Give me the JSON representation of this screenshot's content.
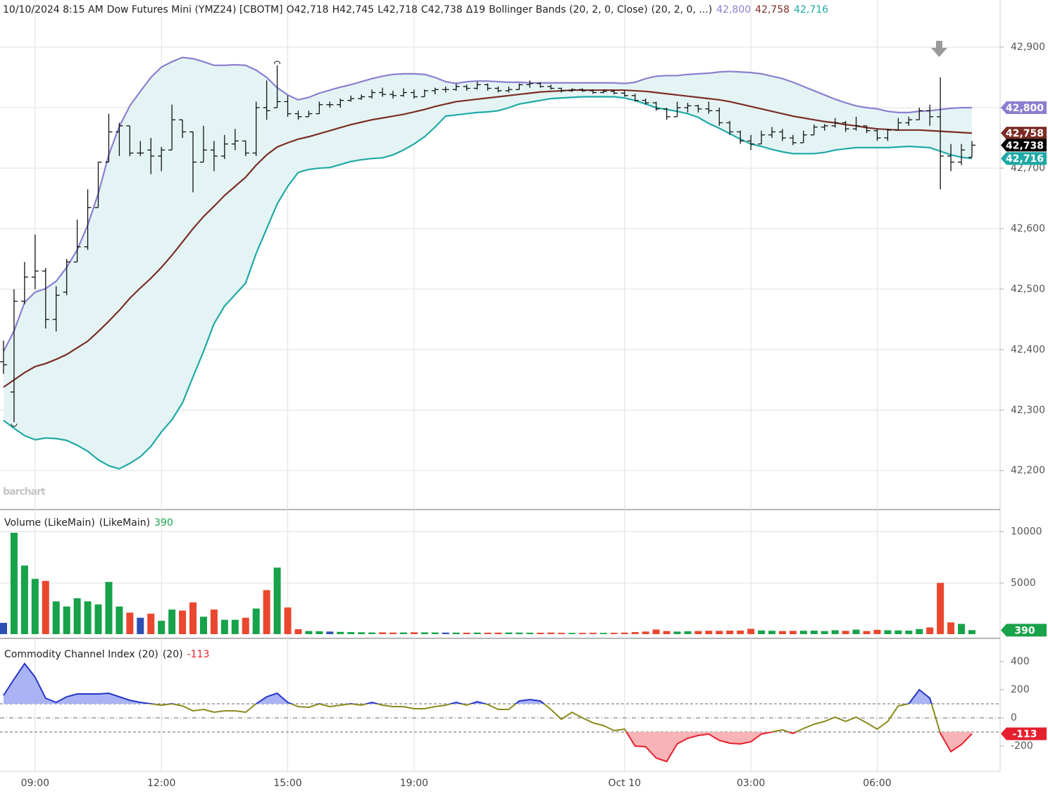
{
  "chart_data": [
    {
      "type": "ohlc",
      "header": [
        "10/10/2024 8:15 AM",
        "Dow Futures Mini (YMZ24) [CBOTM]",
        "O42,718",
        "H42,745",
        "L42,718",
        "C42,738",
        "Δ19",
        "Bollinger Bands (20, 2, 0, Close)",
        "(20, 2, 0, ...)"
      ],
      "watermark": "barchart",
      "color": "#111111",
      "badge": "42,738",
      "band_fill": "#e4f4f4",
      "open": [
        42380,
        42330,
        42480,
        42520,
        42530,
        42450,
        42495,
        42545,
        42570,
        42635,
        42710,
        42760,
        42770,
        42725,
        42730,
        42720,
        42730,
        42780,
        42760,
        42710,
        42730,
        42720,
        42740,
        42745,
        42725,
        42800,
        42800,
        42810,
        42790,
        42785,
        42790,
        42805,
        42805,
        42812,
        42815,
        42818,
        42825,
        42822,
        42820,
        42825,
        42818,
        42828,
        42830,
        42830,
        42835,
        42832,
        42838,
        42832,
        42828,
        42830,
        42838,
        42840,
        42835,
        42832,
        42828,
        42830,
        42828,
        42825,
        42827,
        42824,
        42820,
        42812,
        42808,
        42798,
        42785,
        42800,
        42803,
        42798,
        42795,
        42775,
        42760,
        42745,
        42740,
        42755,
        42760,
        42750,
        42742,
        42755,
        42768,
        42770,
        42775,
        42765,
        42770,
        42762,
        42750,
        42763,
        42775,
        42780,
        42795,
        42785,
        42720,
        42710,
        42718
      ],
      "high": [
        42415,
        42500,
        42545,
        42590,
        42535,
        42505,
        42550,
        42615,
        42665,
        42710,
        42790,
        42775,
        42770,
        42745,
        42750,
        42735,
        42805,
        42780,
        42760,
        42770,
        42745,
        42755,
        42765,
        42745,
        42810,
        42845,
        42870,
        42820,
        42795,
        42795,
        42810,
        42810,
        42815,
        42820,
        42822,
        42830,
        42833,
        42828,
        42832,
        42830,
        42830,
        42833,
        42835,
        42840,
        42838,
        42843,
        42840,
        42835,
        42835,
        42840,
        42845,
        42842,
        42838,
        42833,
        42832,
        42832,
        42830,
        42830,
        42829,
        42828,
        42823,
        42815,
        42810,
        42800,
        42810,
        42808,
        42805,
        42810,
        42800,
        42778,
        42762,
        42755,
        42762,
        42768,
        42765,
        42755,
        42762,
        42772,
        42773,
        42783,
        42778,
        42785,
        42770,
        42765,
        42765,
        42783,
        42785,
        42800,
        42805,
        42850,
        42740,
        42740,
        42745
      ],
      "low": [
        42360,
        42280,
        42475,
        42500,
        42435,
        42430,
        42490,
        42545,
        42565,
        42635,
        42710,
        42720,
        42720,
        42720,
        42690,
        42695,
        42730,
        42750,
        42660,
        42710,
        42695,
        42715,
        42730,
        42720,
        42720,
        42780,
        42800,
        42785,
        42780,
        42785,
        42790,
        42800,
        42800,
        42810,
        42813,
        42815,
        42818,
        42815,
        42818,
        42815,
        42818,
        42822,
        42825,
        42828,
        42828,
        42830,
        42828,
        42825,
        42825,
        42830,
        42833,
        42833,
        42830,
        42825,
        42826,
        42826,
        42823,
        42824,
        42822,
        42818,
        42810,
        42805,
        42795,
        42780,
        42785,
        42792,
        42792,
        42790,
        42770,
        42755,
        42740,
        42730,
        42740,
        42750,
        42745,
        42738,
        42742,
        42755,
        42762,
        42767,
        42760,
        42762,
        42758,
        42745,
        42745,
        42763,
        42770,
        42780,
        42770,
        42665,
        42695,
        42705,
        42718
      ],
      "close": [
        42375,
        42480,
        42520,
        42530,
        42450,
        42490,
        42545,
        42570,
        42635,
        42710,
        42760,
        42770,
        42725,
        42725,
        42720,
        42730,
        42780,
        42760,
        42710,
        42730,
        42720,
        42740,
        42745,
        42725,
        42800,
        42795,
        42810,
        42790,
        42785,
        42790,
        42805,
        42805,
        42812,
        42815,
        42818,
        42825,
        42822,
        42820,
        42825,
        42818,
        42828,
        42830,
        42830,
        42835,
        42832,
        42838,
        42832,
        42828,
        42830,
        42838,
        42840,
        42835,
        42832,
        42828,
        42830,
        42828,
        42825,
        42827,
        42824,
        42820,
        42812,
        42808,
        42798,
        42785,
        42800,
        42803,
        42798,
        42795,
        42775,
        42760,
        42745,
        42740,
        42755,
        42760,
        42750,
        42742,
        42755,
        42768,
        42770,
        42775,
        42765,
        42770,
        42762,
        42750,
        42763,
        42775,
        42780,
        42795,
        42785,
        42720,
        42710,
        42730,
        42738
      ],
      "series": [
        {
          "color": "#8a7fd0",
          "badge": "42,800",
          "values": [
            42397,
            42431,
            42478,
            42495,
            42501,
            42513,
            42536,
            42565,
            42606,
            42658,
            42722,
            42769,
            42803,
            42827,
            42850,
            42867,
            42876,
            42883,
            42881,
            42876,
            42870,
            42870,
            42871,
            42870,
            42862,
            42850,
            42833,
            42821,
            42813,
            42817,
            42824,
            42829,
            42834,
            42838,
            42843,
            42848,
            42852,
            42855,
            42856,
            42856,
            42855,
            42850,
            42843,
            42840,
            42843,
            42844,
            42844,
            42843,
            42842,
            42842,
            42841,
            42841,
            42841,
            42841,
            42841,
            42841,
            42841,
            42841,
            42841,
            42840,
            42842,
            42848,
            42852,
            42853,
            42853,
            42855,
            42856,
            42857,
            42859,
            42860,
            42859,
            42858,
            42856,
            42852,
            42848,
            42842,
            42835,
            42828,
            42821,
            42814,
            42808,
            42803,
            42800,
            42798,
            42794,
            42792,
            42792,
            42794,
            42795,
            42797,
            42799,
            42800,
            42800
          ]
        },
        {
          "color": "#7b2d25",
          "badge": "42,758",
          "values": [
            42338,
            42350,
            42362,
            42372,
            42377,
            42384,
            42392,
            42403,
            42414,
            42430,
            42447,
            42465,
            42485,
            42502,
            42518,
            42536,
            42556,
            42578,
            42600,
            42620,
            42637,
            42655,
            42670,
            42685,
            42705,
            42722,
            42735,
            42742,
            42748,
            42752,
            42757,
            42762,
            42767,
            42772,
            42776,
            42780,
            42783,
            42786,
            42789,
            42793,
            42797,
            42802,
            42806,
            42810,
            42812,
            42814,
            42816,
            42818,
            42820,
            42822,
            42824,
            42826,
            42827,
            42828,
            42829,
            42829,
            42829,
            42829,
            42829,
            42829,
            42828,
            42827,
            42825,
            42823,
            42821,
            42819,
            42817,
            42815,
            42813,
            42810,
            42806,
            42802,
            42798,
            42794,
            42790,
            42786,
            42783,
            42780,
            42777,
            42775,
            42772,
            42770,
            42767,
            42765,
            42764,
            42763,
            42763,
            42763,
            42762,
            42761,
            42760,
            42759,
            42758
          ]
        },
        {
          "color": "#1fa9a6",
          "badge": "42,716",
          "values": [
            42283,
            42270,
            42258,
            42251,
            42254,
            42253,
            42250,
            42242,
            42232,
            42218,
            42208,
            42203,
            42212,
            42223,
            42240,
            42264,
            42284,
            42312,
            42355,
            42397,
            42443,
            42472,
            42491,
            42510,
            42559,
            42600,
            42641,
            42670,
            42693,
            42698,
            42700,
            42701,
            42706,
            42711,
            42714,
            42716,
            42717,
            42722,
            42730,
            42740,
            42752,
            42768,
            42786,
            42788,
            42790,
            42792,
            42793,
            42795,
            42800,
            42806,
            42809,
            42812,
            42815,
            42816,
            42817,
            42818,
            42818,
            42818,
            42818,
            42816,
            42812,
            42806,
            42800,
            42797,
            42794,
            42790,
            42784,
            42774,
            42766,
            42757,
            42748,
            42740,
            42736,
            42731,
            42727,
            42724,
            42724,
            42724,
            42726,
            42730,
            42732,
            42734,
            42734,
            42734,
            42734,
            42735,
            42736,
            42735,
            42734,
            42728,
            42722,
            42718,
            42716
          ]
        }
      ],
      "ylim": [
        42138,
        42978
      ],
      "yticks": [
        {
          "value": 42200,
          "label": "42,200"
        },
        {
          "value": 42300,
          "label": "42,300"
        },
        {
          "value": 42400,
          "label": "42,400"
        },
        {
          "value": 42500,
          "label": "42,500"
        },
        {
          "value": 42600,
          "label": "42,600"
        },
        {
          "value": 42700,
          "label": "42,700"
        },
        {
          "value": 42800,
          "label": "42,800"
        },
        {
          "value": 42900,
          "label": "42,900"
        }
      ],
      "grid": true
    },
    {
      "type": "bar",
      "title": "Volume (LikeMain)",
      "subtitle": "(LikeMain)",
      "badge": "390",
      "colors": {
        "up": "#18a24a",
        "down": "#e9472e",
        "unchanged": "#2c4fb3"
      },
      "values": [
        1100,
        9900,
        6700,
        5400,
        5200,
        3200,
        2700,
        3500,
        3200,
        2900,
        5100,
        2700,
        2100,
        1600,
        2000,
        1300,
        2400,
        2300,
        3100,
        1700,
        2400,
        1400,
        1400,
        1600,
        2500,
        4300,
        6500,
        2600,
        480,
        300,
        280,
        250,
        220,
        200,
        180,
        160,
        170,
        150,
        160,
        180,
        170,
        160,
        150,
        150,
        140,
        150,
        140,
        150,
        160,
        150,
        140,
        140,
        150,
        130,
        120,
        120,
        130,
        120,
        130,
        150,
        200,
        250,
        450,
        300,
        250,
        280,
        300,
        330,
        320,
        340,
        350,
        520,
        360,
        330,
        300,
        320,
        330,
        340,
        300,
        380,
        320,
        440,
        300,
        420,
        380,
        360,
        340,
        500,
        650,
        5000,
        1150,
        1000,
        390
      ],
      "ylim": [
        0,
        12100
      ],
      "yticks": [
        5000,
        10000
      ],
      "grid": true
    },
    {
      "type": "line",
      "title": "Commodity Channel Index (20)",
      "subtitle": "(20)",
      "badge": "-113",
      "color": "#8a8a1c",
      "above_color": "#2435c8",
      "above_fill": "#aab3f4",
      "below_color": "#e5202e",
      "below_fill": "#f7b3b5",
      "levels": [
        100,
        0,
        -100
      ],
      "categories": [
        null,
        null,
        null,
        "09:00",
        null,
        null,
        null,
        null,
        null,
        null,
        null,
        null,
        null,
        null,
        null,
        "12:00",
        null,
        null,
        null,
        null,
        null,
        null,
        null,
        null,
        null,
        null,
        null,
        "15:00",
        null,
        null,
        null,
        null,
        null,
        null,
        null,
        null,
        null,
        null,
        null,
        "19:00",
        null,
        null,
        null,
        null,
        null,
        null,
        null,
        null,
        null,
        null,
        null,
        null,
        null,
        null,
        null,
        null,
        null,
        null,
        null,
        "Oct 10",
        null,
        null,
        null,
        null,
        null,
        null,
        null,
        null,
        null,
        null,
        null,
        "03:00",
        null,
        null,
        null,
        null,
        null,
        null,
        null,
        null,
        null,
        null,
        null,
        "06:00",
        null,
        null,
        null,
        null,
        null,
        null,
        null,
        null,
        null
      ],
      "values": [
        160,
        275,
        385,
        290,
        140,
        110,
        150,
        170,
        170,
        170,
        175,
        150,
        125,
        110,
        100,
        90,
        100,
        85,
        50,
        60,
        40,
        50,
        50,
        40,
        100,
        150,
        175,
        110,
        80,
        75,
        100,
        80,
        90,
        100,
        90,
        110,
        90,
        80,
        80,
        65,
        65,
        80,
        90,
        110,
        90,
        115,
        95,
        60,
        60,
        120,
        130,
        120,
        60,
        -10,
        40,
        0,
        -35,
        -55,
        -90,
        -80,
        -200,
        -205,
        -285,
        -310,
        -185,
        -145,
        -125,
        -115,
        -160,
        -180,
        -185,
        -170,
        -115,
        -100,
        -85,
        -110,
        -75,
        -45,
        -25,
        5,
        -25,
        5,
        -35,
        -80,
        -25,
        85,
        100,
        200,
        140,
        -110,
        -240,
        -190,
        -113
      ],
      "ylim": [
        -375,
        550
      ],
      "yticks": [
        -200,
        0,
        200,
        400
      ],
      "grid": false
    }
  ]
}
